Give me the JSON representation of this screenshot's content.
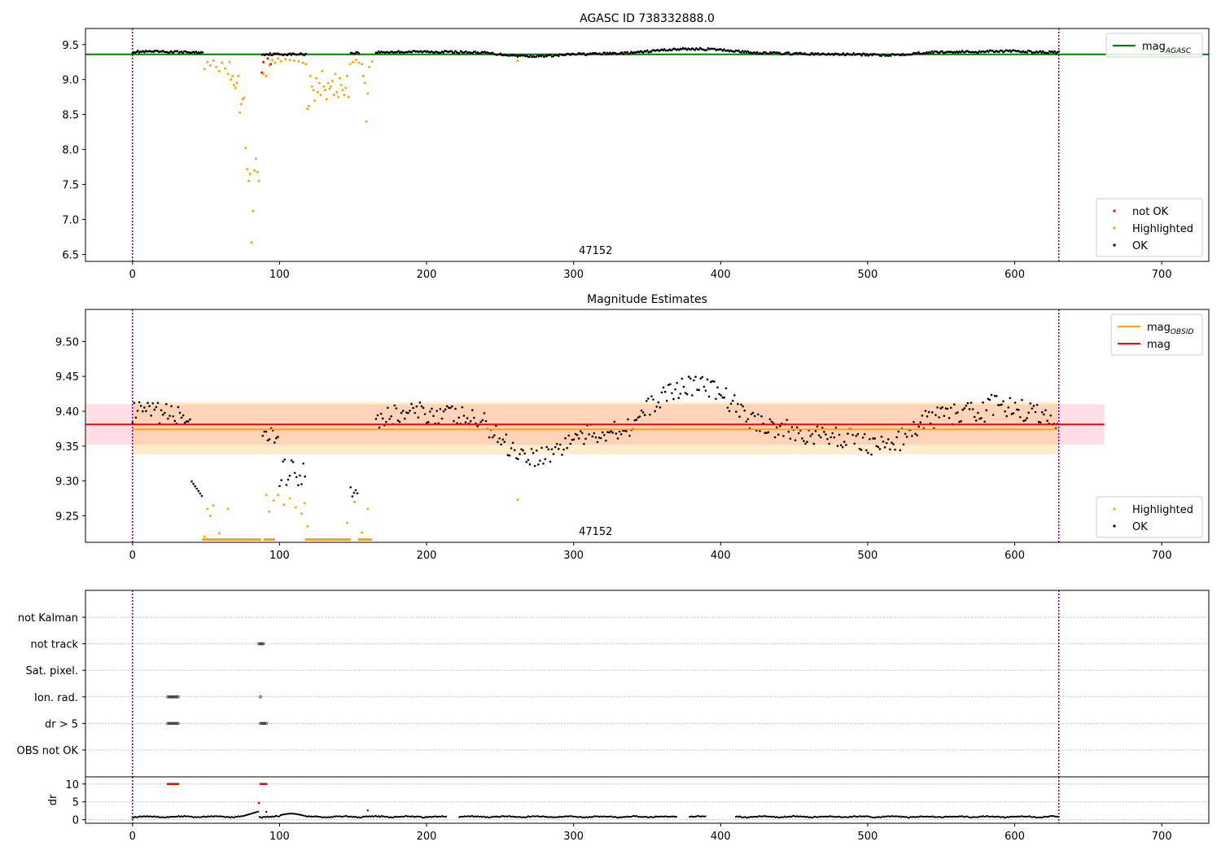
{
  "chart_data": [
    {
      "type": "scatter",
      "title": "AGASC ID 738332888.0",
      "xlabel": "",
      "ylabel": "",
      "xlim": [
        -32,
        732
      ],
      "ylim": [
        6.4,
        9.73
      ],
      "xticks": [
        0,
        100,
        200,
        300,
        400,
        500,
        600,
        700
      ],
      "yticks": [
        6.5,
        7.0,
        7.5,
        8.0,
        8.5,
        9.0,
        9.5
      ],
      "ytick_labels": [
        "6.5",
        "7.0",
        "7.5",
        "8.0",
        "8.5",
        "9.0",
        "9.5"
      ],
      "hlines": [
        {
          "name": "mag_AGASC",
          "y": 9.36,
          "color": "#008000",
          "x": [
            -32,
            732
          ]
        }
      ],
      "vlines": [
        {
          "x": 0,
          "color": "#800080",
          "style": "dotted"
        },
        {
          "x": 630,
          "color": "#800080",
          "style": "dotted"
        }
      ],
      "obs_label": {
        "text": "47152",
        "x": 315
      },
      "legends": [
        {
          "position": "upper-right",
          "entries": [
            {
              "label": "mag",
              "sub": "AGASC",
              "kind": "line",
              "color": "#008000"
            }
          ]
        },
        {
          "position": "lower-right",
          "entries": [
            {
              "label": "not OK",
              "kind": "dot",
              "color": "#ff0000"
            },
            {
              "label": "Highlighted",
              "kind": "dot",
              "color": "#ffa500"
            },
            {
              "label": "OK",
              "kind": "dot",
              "color": "#000000"
            }
          ]
        }
      ],
      "series": [
        {
          "name": "not OK",
          "color": "#ff0000",
          "points": [
            [
              88,
              9.1
            ],
            [
              89,
              9.25
            ],
            [
              92,
              9.3
            ],
            [
              94,
              9.22
            ]
          ]
        },
        {
          "name": "Highlighted",
          "color": "#ffa500",
          "points": [
            [
              49,
              9.15
            ],
            [
              51,
              9.25
            ],
            [
              53,
              9.2
            ],
            [
              55,
              9.27
            ],
            [
              57,
              9.18
            ],
            [
              59,
              9.12
            ],
            [
              61,
              9.24
            ],
            [
              63,
              9.16
            ],
            [
              65,
              9.08
            ],
            [
              66,
              9.25
            ],
            [
              67,
              9.0
            ],
            [
              68,
              9.05
            ],
            [
              69,
              8.92
            ],
            [
              70,
              8.88
            ],
            [
              71,
              8.95
            ],
            [
              72,
              9.05
            ],
            [
              73,
              8.53
            ],
            [
              74,
              8.65
            ],
            [
              75,
              8.72
            ],
            [
              76,
              8.74
            ],
            [
              77,
              8.02
            ],
            [
              78,
              7.72
            ],
            [
              79,
              7.55
            ],
            [
              80,
              7.65
            ],
            [
              81,
              6.67
            ],
            [
              82,
              7.12
            ],
            [
              83,
              7.7
            ],
            [
              84,
              7.87
            ],
            [
              85,
              7.68
            ],
            [
              86,
              7.55
            ],
            [
              89,
              9.08
            ],
            [
              91,
              9.05
            ],
            [
              93,
              9.2
            ],
            [
              95,
              9.28
            ],
            [
              97,
              9.24
            ],
            [
              99,
              9.3
            ],
            [
              101,
              9.26
            ],
            [
              104,
              9.29
            ],
            [
              107,
              9.28
            ],
            [
              110,
              9.27
            ],
            [
              113,
              9.26
            ],
            [
              116,
              9.24
            ],
            [
              118,
              9.22
            ],
            [
              119,
              8.58
            ],
            [
              120,
              8.62
            ],
            [
              121,
              9.05
            ],
            [
              122,
              8.9
            ],
            [
              123,
              8.85
            ],
            [
              124,
              8.7
            ],
            [
              125,
              9.02
            ],
            [
              126,
              8.82
            ],
            [
              127,
              8.95
            ],
            [
              128,
              8.78
            ],
            [
              129,
              9.12
            ],
            [
              130,
              8.9
            ],
            [
              131,
              8.85
            ],
            [
              132,
              8.72
            ],
            [
              133,
              8.95
            ],
            [
              134,
              8.87
            ],
            [
              135,
              8.9
            ],
            [
              136,
              8.98
            ],
            [
              137,
              8.78
            ],
            [
              138,
              9.08
            ],
            [
              139,
              8.82
            ],
            [
              140,
              8.75
            ],
            [
              141,
              9.02
            ],
            [
              142,
              8.92
            ],
            [
              143,
              8.85
            ],
            [
              144,
              8.78
            ],
            [
              145,
              8.88
            ],
            [
              146,
              9.05
            ],
            [
              147,
              8.75
            ],
            [
              148,
              9.22
            ],
            [
              150,
              9.25
            ],
            [
              152,
              9.28
            ],
            [
              154,
              9.24
            ],
            [
              156,
              9.22
            ],
            [
              157,
              9.05
            ],
            [
              158,
              8.95
            ],
            [
              159,
              8.4
            ],
            [
              160,
              8.8
            ],
            [
              161,
              9.18
            ],
            [
              163,
              9.26
            ],
            [
              262,
              9.27
            ]
          ]
        }
      ]
    },
    {
      "type": "scatter",
      "title": "Magnitude Estimates",
      "xlabel": "",
      "ylabel": "",
      "xlim": [
        -32,
        732
      ],
      "ylim": [
        9.212,
        9.546
      ],
      "xticks": [
        0,
        100,
        200,
        300,
        400,
        500,
        600,
        700
      ],
      "yticks": [
        9.25,
        9.3,
        9.35,
        9.4,
        9.45,
        9.5
      ],
      "ytick_labels": [
        "9.25",
        "9.30",
        "9.35",
        "9.40",
        "9.45",
        "9.50"
      ],
      "bands": [
        {
          "y": [
            9.352,
            9.41
          ],
          "x": [
            -32,
            661
          ],
          "color": "#ffc0cb",
          "opacity": 0.5
        },
        {
          "y": [
            9.338,
            9.413
          ],
          "x": [
            0,
            630
          ],
          "color": "#ffa500",
          "opacity": 0.2
        }
      ],
      "hlines": [
        {
          "name": "mag_OBSID",
          "y": 9.374,
          "color": "#ffa500",
          "x": [
            0,
            630
          ]
        },
        {
          "name": "mag",
          "y": 9.381,
          "color": "#ff0000",
          "x": [
            -32,
            661
          ]
        }
      ],
      "vlines": [
        {
          "x": 0,
          "color": "#800080",
          "style": "dotted"
        },
        {
          "x": 630,
          "color": "#800080",
          "style": "dotted"
        }
      ],
      "obs_label": {
        "text": "47152",
        "x": 315
      },
      "legends": [
        {
          "position": "upper-right",
          "entries": [
            {
              "label": "mag",
              "sub": "OBSID",
              "kind": "line",
              "color": "#ffa500"
            },
            {
              "label": "mag",
              "kind": "line",
              "color": "#ff0000"
            }
          ]
        },
        {
          "position": "lower-right",
          "entries": [
            {
              "label": "Highlighted",
              "kind": "dot",
              "color": "#ffa500"
            },
            {
              "label": "OK",
              "kind": "dot",
              "color": "#000000"
            }
          ]
        }
      ],
      "series": [
        {
          "name": "Highlighted",
          "color": "#ffa500",
          "points": [
            [
              49,
              9.22
            ],
            [
              51,
              9.26
            ],
            [
              53,
              9.25
            ],
            [
              55,
              9.265
            ],
            [
              59,
              9.225
            ],
            [
              65,
              9.26
            ],
            [
              91,
              9.28
            ],
            [
              93,
              9.256
            ],
            [
              96,
              9.272
            ],
            [
              99,
              9.28
            ],
            [
              103,
              9.266
            ],
            [
              107,
              9.275
            ],
            [
              111,
              9.262
            ],
            [
              115,
              9.253
            ],
            [
              117,
              9.268
            ],
            [
              119,
              9.235
            ],
            [
              146,
              9.24
            ],
            [
              151,
              9.27
            ],
            [
              156,
              9.226
            ],
            [
              160,
              9.26
            ],
            [
              262,
              9.273
            ]
          ]
        },
        {
          "name": "Highlighted (clipped)",
          "color": "#ffa500",
          "range": [
            [
              48,
              87
            ],
            [
              90,
              97
            ],
            [
              118,
              148
            ],
            [
              154,
              163
            ]
          ],
          "y": 9.216
        }
      ]
    },
    {
      "type": "scatter",
      "title": "",
      "xlabel": "",
      "ylabel": "",
      "xlim": [
        -32,
        732
      ],
      "categories": [
        "not Kalman",
        "not track",
        "Sat. pixel.",
        "Ion. rad.",
        "dr > 5",
        "OBS not OK"
      ],
      "vlines": [
        {
          "x": 0,
          "color": "#800080",
          "style": "dotted"
        },
        {
          "x": 630,
          "color": "#800080",
          "style": "dotted"
        }
      ],
      "flags": {
        "not track": [
          86,
          87,
          88,
          89
        ],
        "Ion. rad.": [
          24,
          25,
          26,
          27,
          28,
          29,
          30,
          31,
          87
        ],
        "dr > 5": [
          24,
          25,
          26,
          27,
          28,
          29,
          30,
          31,
          87,
          88,
          89,
          90,
          91
        ]
      }
    },
    {
      "type": "scatter",
      "title": "",
      "xlabel": "",
      "ylabel": "dr",
      "xlim": [
        -32,
        732
      ],
      "ylim": [
        -1,
        12
      ],
      "yticks": [
        0,
        5,
        10
      ],
      "ytick_labels": [
        "0",
        "5",
        "10"
      ],
      "vlines": [
        {
          "x": 0,
          "color": "#800080",
          "style": "dotted"
        },
        {
          "x": 630,
          "color": "#800080",
          "style": "dotted"
        }
      ],
      "series": [
        {
          "name": "dr > 5",
          "color": "#ff0000",
          "points": [
            [
              24,
              10
            ],
            [
              25,
              10
            ],
            [
              26,
              10
            ],
            [
              27,
              10
            ],
            [
              28,
              10
            ],
            [
              29,
              10
            ],
            [
              30,
              10
            ],
            [
              31,
              10
            ],
            [
              87,
              10
            ],
            [
              88,
              10
            ],
            [
              89,
              10
            ],
            [
              90,
              10
            ],
            [
              91,
              10
            ],
            [
              86,
              4.7
            ]
          ]
        }
      ]
    }
  ]
}
